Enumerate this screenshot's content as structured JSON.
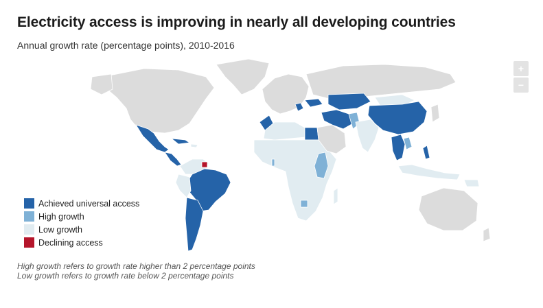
{
  "title": "Electricity access is improving in nearly all developing countries",
  "subtitle": "Annual growth rate (percentage points), 2010-2016",
  "zoom": {
    "in_label": "+",
    "out_label": "−"
  },
  "colors": {
    "achieved": "#2563a8",
    "high": "#7fb1d6",
    "low": "#e1ecf1",
    "declining": "#b5152b",
    "no_data": "#dcdcdc"
  },
  "legend": [
    {
      "label": "Achieved universal access",
      "color": "#2563a8"
    },
    {
      "label": "High growth",
      "color": "#7fb1d6"
    },
    {
      "label": "Low growth",
      "color": "#e1ecf1"
    },
    {
      "label": "Declining access",
      "color": "#b5152b"
    }
  ],
  "notes": [
    "High growth refers to growth rate higher than 2 percentage points",
    "Low growth refers to growth rate below 2 percentage points"
  ]
}
